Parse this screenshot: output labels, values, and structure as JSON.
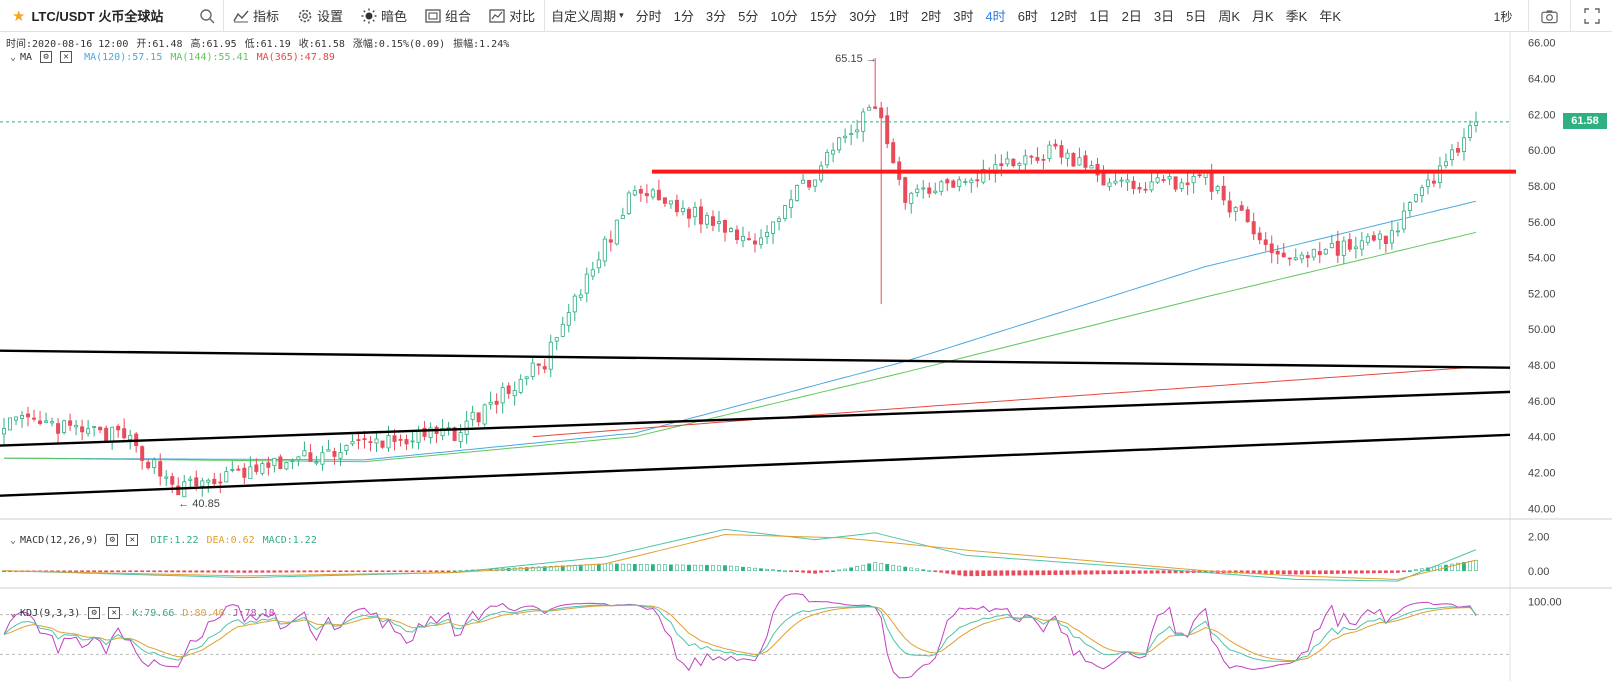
{
  "toolbar": {
    "symbol": "LTC/USDT 火币全球站",
    "buttons": [
      {
        "label": "指标",
        "icon": "indicator-icon"
      },
      {
        "label": "设置",
        "icon": "gear-icon"
      },
      {
        "label": "暗色",
        "icon": "sun-icon"
      },
      {
        "label": "组合",
        "icon": "layout-icon"
      },
      {
        "label": "对比",
        "icon": "compare-icon"
      }
    ],
    "custom_period": "自定义周期",
    "periods": [
      "分时",
      "1分",
      "3分",
      "5分",
      "10分",
      "15分",
      "30分",
      "1时",
      "2时",
      "3时",
      "4时",
      "6时",
      "12时",
      "1日",
      "2日",
      "3日",
      "5日",
      "周K",
      "月K",
      "季K",
      "年K"
    ],
    "active_period": "4时",
    "refresh": "1秒"
  },
  "ohlc": {
    "time": "时间:2020-08-16 12:00",
    "open": "开:61.48",
    "high": "高:61.95",
    "low": "低:61.19",
    "close": "收:61.58",
    "change": "涨幅:0.15%(0.09)",
    "amplitude": "振幅:1.24%"
  },
  "ma_legend": {
    "label": "MA",
    "ma120": "MA(120):57.15",
    "ma144": "MA(144):55.41",
    "ma365": "MA(365):47.89"
  },
  "macd_legend": {
    "label": "MACD(12,26,9)",
    "dif": "DIF:1.22",
    "dea": "DEA:0.62",
    "macd": "MACD:1.22"
  },
  "kdj_legend": {
    "label": "KDJ(9,3,3)",
    "k": "K:79.66",
    "d": "D:80.40",
    "j": "J:78.18"
  },
  "annotations": {
    "high_label": "65.15",
    "low_label": "40.85",
    "last_price": "61.58"
  },
  "colors": {
    "up": "#2eb082",
    "down": "#e84b5a",
    "ma120": "#4aa8e0",
    "ma144": "#5cc75c",
    "ma365": "#e8473d",
    "accent": "#2e7de1",
    "resistance": "#ff1a1a",
    "trend": "#000000"
  },
  "chart_data": [
    {
      "type": "candlestick",
      "title": "LTC/USDT 4H",
      "y_ticks": [
        "40.00",
        "42.00",
        "44.00",
        "46.00",
        "48.00",
        "50.00",
        "52.00",
        "54.00",
        "56.00",
        "58.00",
        "60.00",
        "62.00",
        "64.00",
        "66.00"
      ],
      "ylim": [
        39.4,
        66.6
      ],
      "key_points": [
        {
          "t": 0,
          "close": 44.9
        },
        {
          "t": 20,
          "close": 44.0
        },
        {
          "t": 29,
          "close": 41.1
        },
        {
          "t": 60,
          "close": 43.6
        },
        {
          "t": 75,
          "close": 44.2
        },
        {
          "t": 90,
          "close": 48.2
        },
        {
          "t": 105,
          "close": 57.8
        },
        {
          "t": 125,
          "close": 55.0
        },
        {
          "t": 145,
          "close": 62.5
        },
        {
          "t": 150,
          "close": 57.5
        },
        {
          "t": 175,
          "close": 60.0
        },
        {
          "t": 185,
          "close": 58.0
        },
        {
          "t": 200,
          "close": 58.4
        },
        {
          "t": 212,
          "close": 54.0
        },
        {
          "t": 230,
          "close": 55.0
        },
        {
          "t": 245,
          "close": 61.58
        }
      ],
      "high_point": {
        "t": 145,
        "value": 65.15
      },
      "low_point": {
        "t": 29,
        "value": 40.85
      },
      "last": 61.58,
      "lines": [
        {
          "name": "resistance",
          "y": 58.8
        },
        {
          "name": "trend-upper",
          "y_start": 48.8,
          "y_end": 47.85
        },
        {
          "name": "trend-middle",
          "y_start": 43.5,
          "y_end": 46.5
        },
        {
          "name": "trend-lower",
          "y_start": 40.7,
          "y_end": 44.1
        }
      ],
      "moving_averages": [
        {
          "name": "MA(120)",
          "points": [
            [
              0,
              42.8
            ],
            [
              60,
              42.7
            ],
            [
              105,
              44.2
            ],
            [
              150,
              48.2
            ],
            [
              200,
              53.5
            ],
            [
              245,
              57.15
            ]
          ]
        },
        {
          "name": "MA(144)",
          "points": [
            [
              0,
              42.8
            ],
            [
              60,
              42.6
            ],
            [
              105,
              44.0
            ],
            [
              150,
              47.6
            ],
            [
              200,
              51.8
            ],
            [
              245,
              55.41
            ]
          ]
        },
        {
          "name": "MA(365)",
          "points": [
            [
              88,
              44.0
            ],
            [
              150,
              45.6
            ],
            [
              200,
              46.8
            ],
            [
              245,
              47.89
            ]
          ]
        }
      ]
    },
    {
      "type": "bar",
      "title": "MACD(12,26,9)",
      "y_ticks": [
        "2.00",
        "0.00"
      ],
      "ylim": [
        -1.0,
        3.0
      ],
      "dif_points": [
        [
          0,
          0
        ],
        [
          40,
          -0.4
        ],
        [
          75,
          -0.1
        ],
        [
          100,
          0.8
        ],
        [
          120,
          2.4
        ],
        [
          135,
          1.8
        ],
        [
          145,
          2.2
        ],
        [
          160,
          0.9
        ],
        [
          200,
          -0.1
        ],
        [
          215,
          -0.5
        ],
        [
          232,
          -0.6
        ],
        [
          245,
          1.22
        ]
      ],
      "dea_points": [
        [
          0,
          0
        ],
        [
          40,
          -0.3
        ],
        [
          75,
          -0.1
        ],
        [
          100,
          0.4
        ],
        [
          120,
          2.1
        ],
        [
          140,
          1.9
        ],
        [
          160,
          1.2
        ],
        [
          200,
          0.0
        ],
        [
          215,
          -0.3
        ],
        [
          232,
          -0.5
        ],
        [
          245,
          0.62
        ]
      ]
    },
    {
      "type": "line",
      "title": "KDJ(9,3,3)",
      "y_ticks": [
        "100.00"
      ],
      "ylim": [
        -20,
        120
      ],
      "last": {
        "k": 79.66,
        "d": 80.4,
        "j": 78.18
      }
    }
  ]
}
